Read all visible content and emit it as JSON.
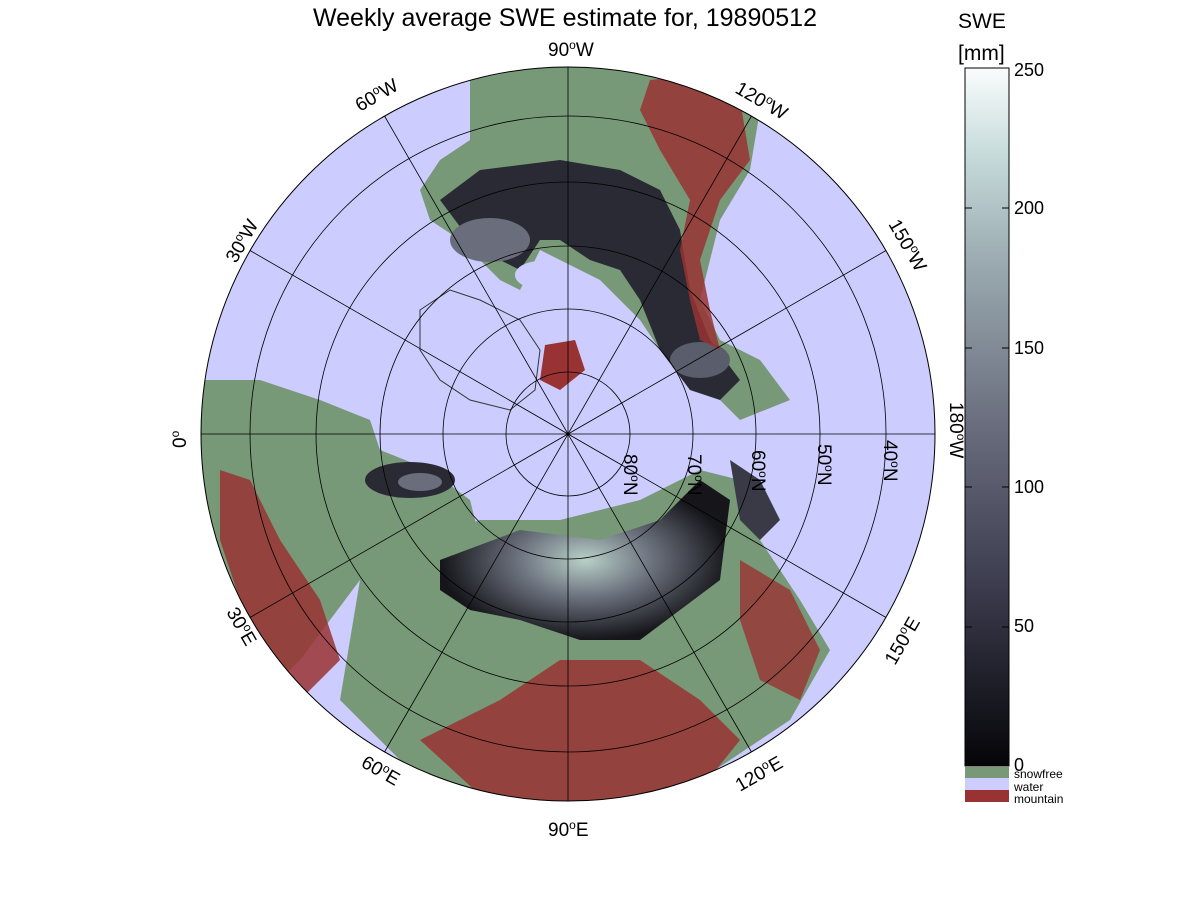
{
  "title": "Weekly average SWE estimate for, 19890512",
  "colorbar": {
    "title_line1": "SWE",
    "title_line2": "[mm]",
    "ticks": [
      "0",
      "50",
      "100",
      "150",
      "200",
      "250"
    ],
    "range": [
      0,
      250
    ]
  },
  "legend": [
    {
      "label": "snowfree",
      "color": "#779977"
    },
    {
      "label": "water",
      "color": "#ccccff"
    },
    {
      "label": "mountain",
      "color": "#993333"
    }
  ],
  "longitude_labels": {
    "w90": "90",
    "w60": "60",
    "w120": "120",
    "w30": "30",
    "w150": "150",
    "zero": "0",
    "w180": "180",
    "e30": "30",
    "e150": "150",
    "e60": "60",
    "e120": "120",
    "e90": "90"
  },
  "longitude_suffix": {
    "w": "W",
    "e": "E",
    "deg": "o"
  },
  "latitude_labels": {
    "n80": "80",
    "n70": "70",
    "n60": "60",
    "n50": "50",
    "n40": "40",
    "suffix": "N"
  },
  "colors": {
    "water": "#ccccff",
    "snowfree": "#779977",
    "mountain": "#993333",
    "swe_low": "#101014",
    "swe_high": "#f4f8f8"
  }
}
